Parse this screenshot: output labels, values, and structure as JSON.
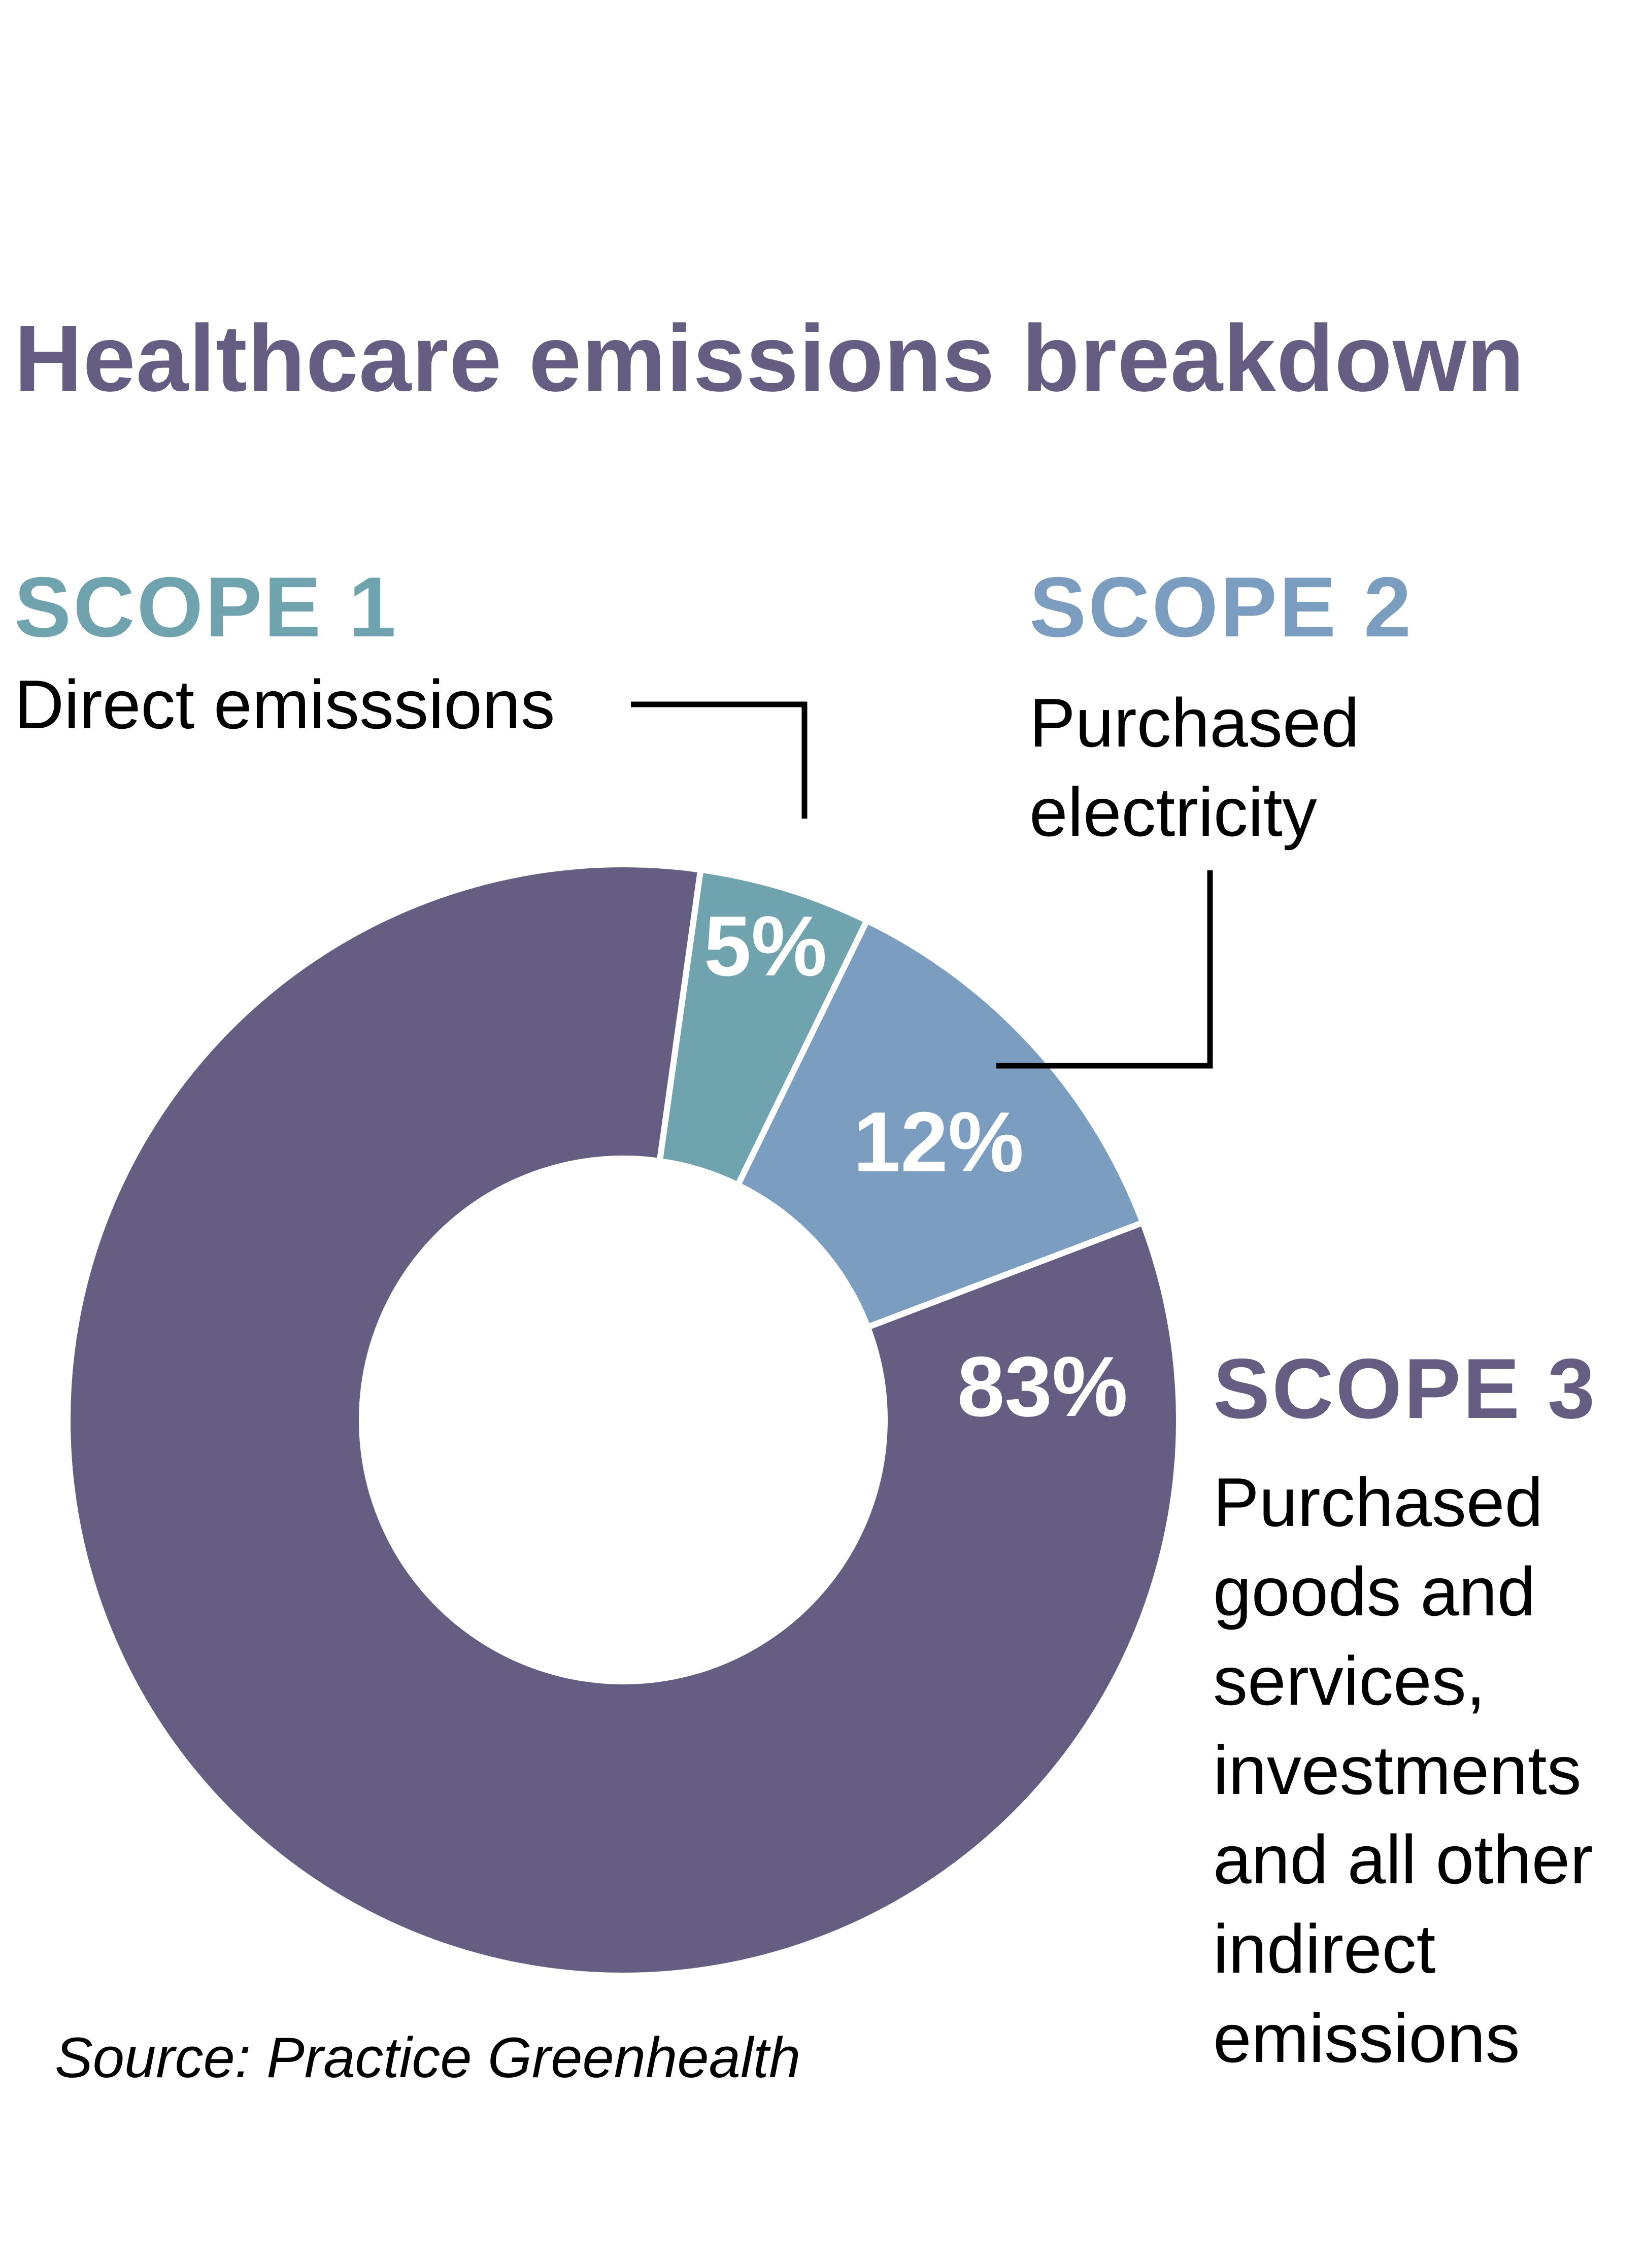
{
  "chart_data": {
    "type": "pie",
    "title": "Healthcare emissions breakdown",
    "donut": true,
    "start_angle_deg": 8,
    "slices": [
      {
        "label": "SCOPE 1",
        "description": "Direct emisssions",
        "value": 5,
        "value_label": "5%",
        "color": "#6fa3ad"
      },
      {
        "label": "SCOPE 2",
        "description": "Purchased electricity",
        "description_lines": [
          "Purchased",
          "electricity"
        ],
        "value": 12,
        "value_label": "12%",
        "color": "#7b9ec0"
      },
      {
        "label": "SCOPE 3",
        "description": "Purchased goods and services, investments and all other indirect emissions",
        "description_lines": [
          "Purchased",
          "goods and",
          "services,",
          "investments",
          "and all other",
          "indirect",
          "emissions"
        ],
        "value": 83,
        "value_label": "83%",
        "color": "#655e82"
      }
    ],
    "source": "Source: Practice Greenhealth"
  }
}
